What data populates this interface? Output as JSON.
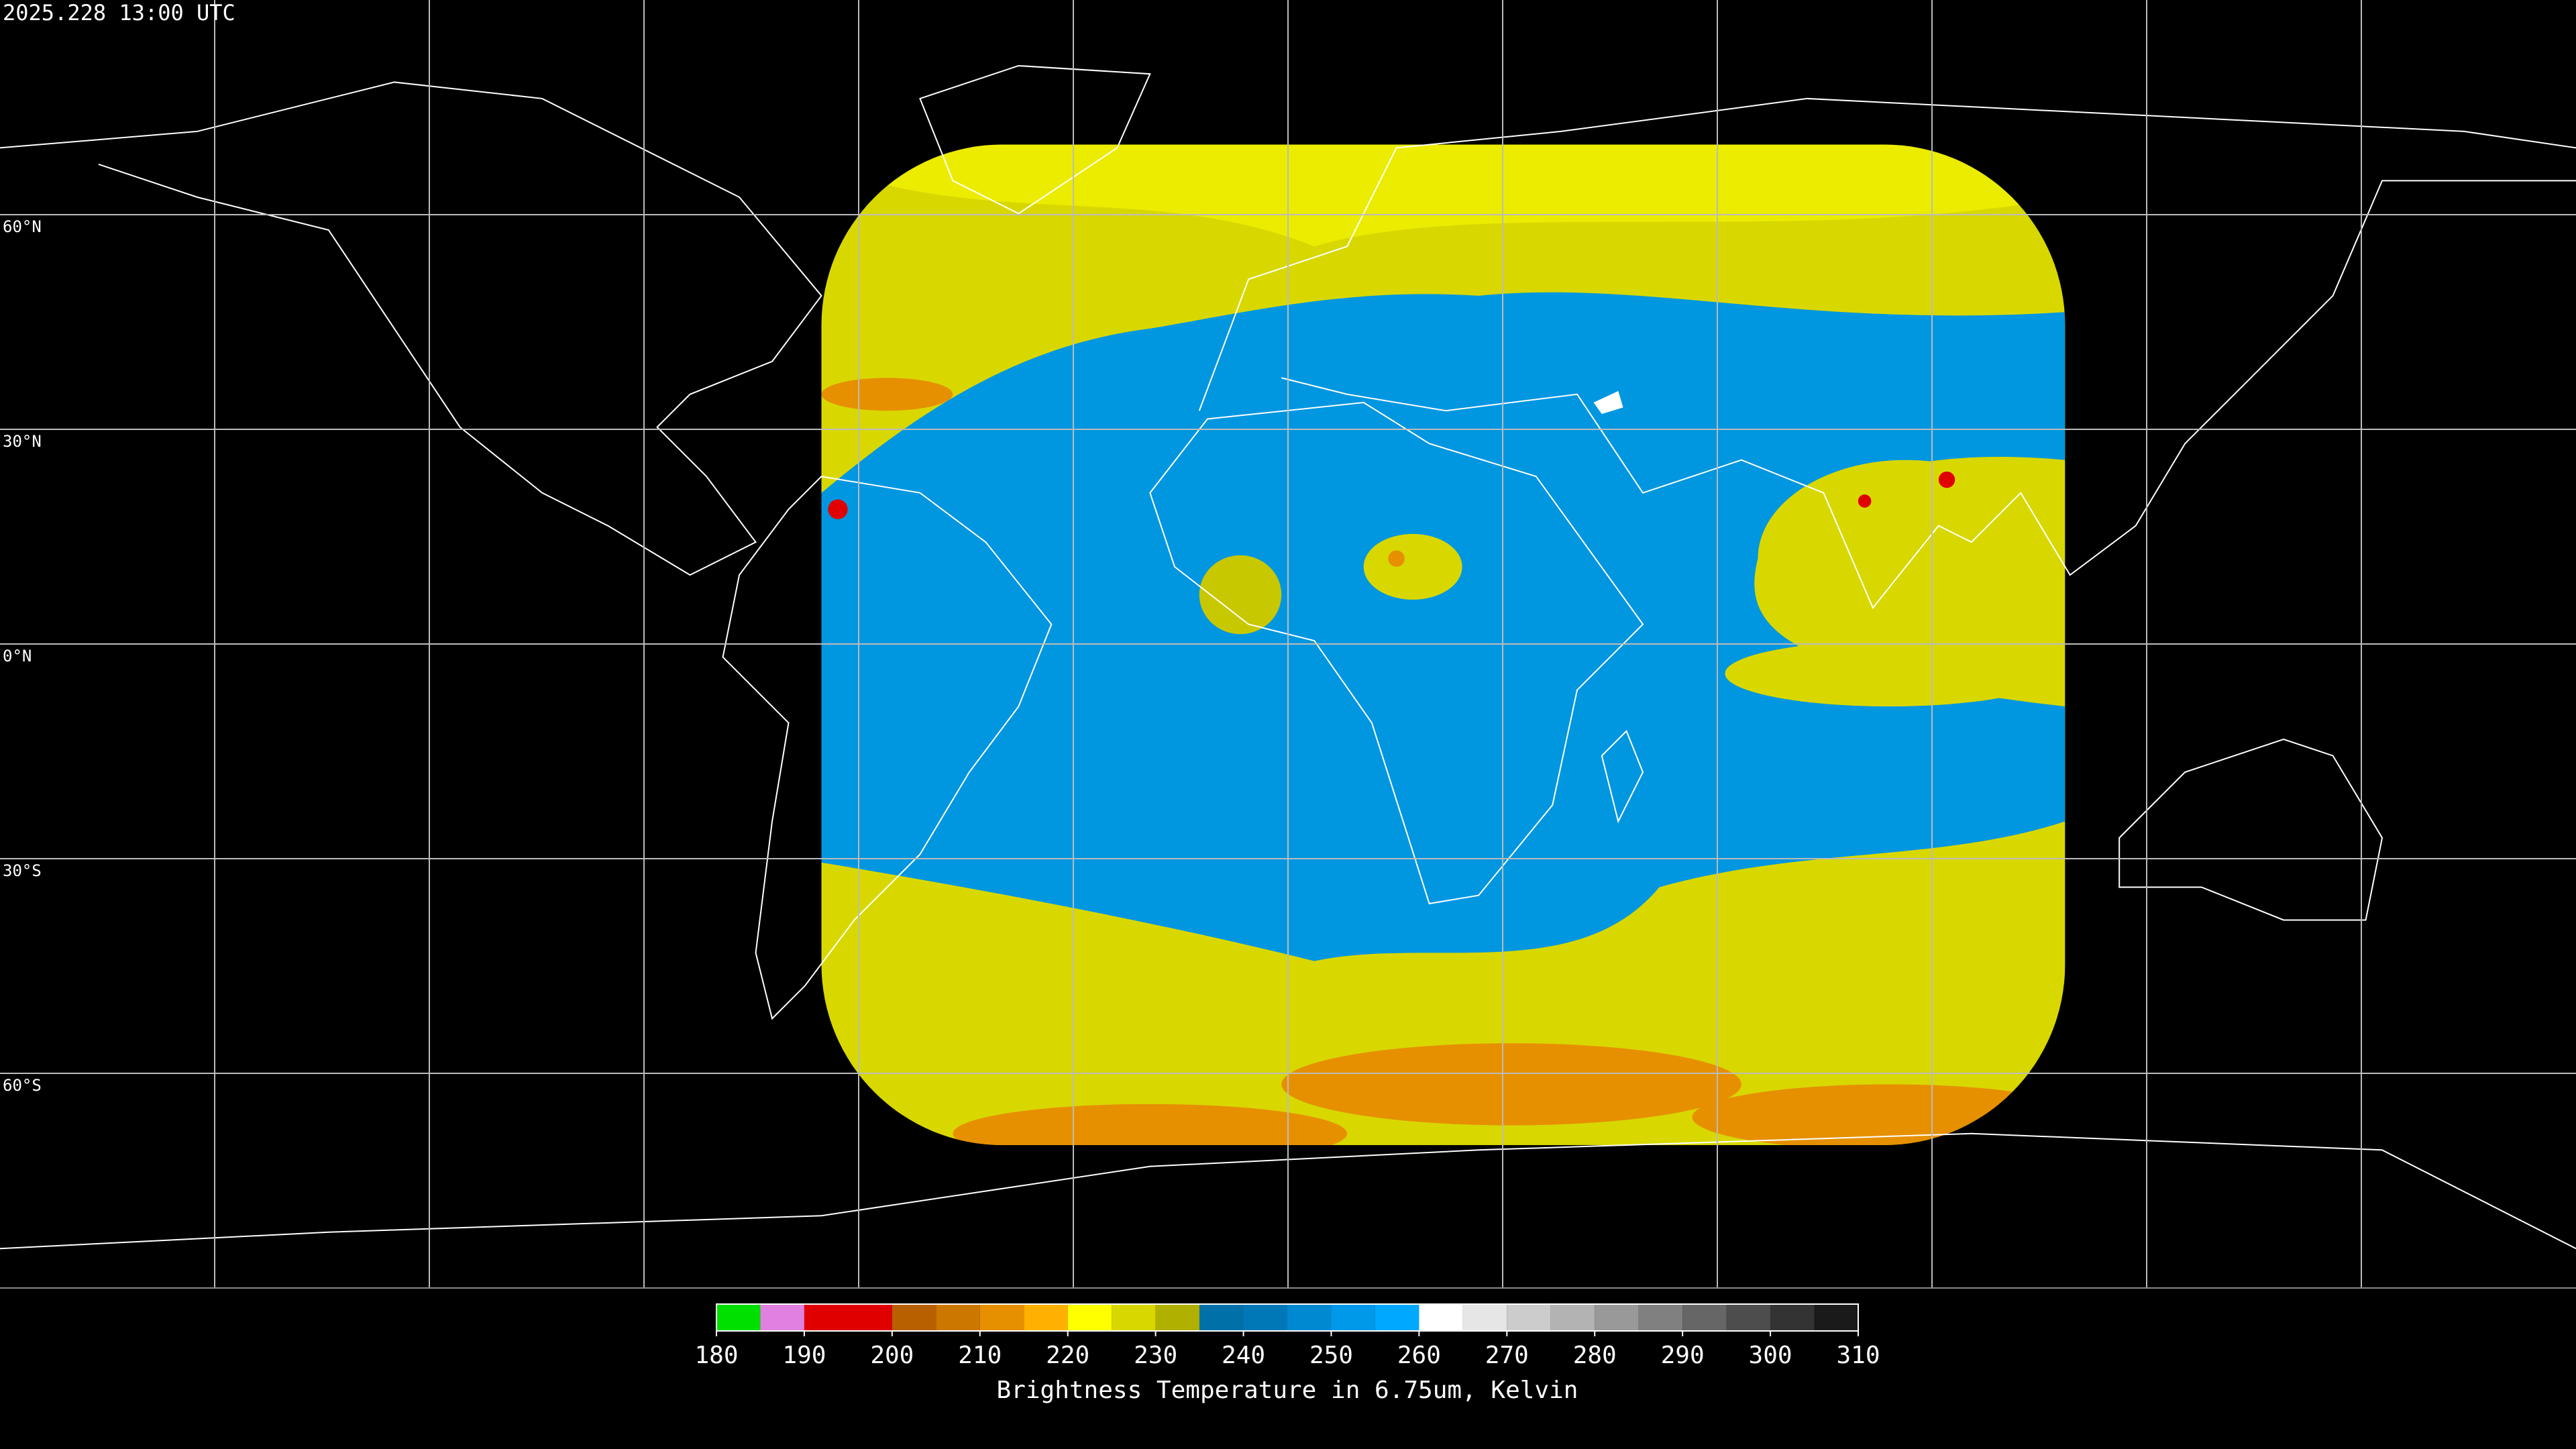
{
  "header": {
    "title": "2025.228 13:00 UTC"
  },
  "map": {
    "lat_labels": [
      "60°N",
      "30°N",
      "0°N",
      "30°S",
      "60°S"
    ]
  },
  "colorbar": {
    "label": "Brightness Temperature in 6.75um, Kelvin",
    "range": [
      180,
      310
    ],
    "ticks": [
      180,
      190,
      200,
      210,
      220,
      230,
      240,
      250,
      260,
      270,
      280,
      290,
      300,
      310
    ],
    "segments": [
      {
        "from": 180,
        "to": 185,
        "color": "#00e000"
      },
      {
        "from": 185,
        "to": 190,
        "color": "#e080e0"
      },
      {
        "from": 190,
        "to": 200,
        "color": "#e00000"
      },
      {
        "from": 200,
        "to": 205,
        "color": "#b86000"
      },
      {
        "from": 205,
        "to": 210,
        "color": "#cc7800"
      },
      {
        "from": 210,
        "to": 215,
        "color": "#e69000"
      },
      {
        "from": 215,
        "to": 220,
        "color": "#ffb000"
      },
      {
        "from": 220,
        "to": 225,
        "color": "#ffff00"
      },
      {
        "from": 225,
        "to": 230,
        "color": "#d8d800"
      },
      {
        "from": 230,
        "to": 235,
        "color": "#b0b000"
      },
      {
        "from": 235,
        "to": 240,
        "color": "#0070a8"
      },
      {
        "from": 240,
        "to": 245,
        "color": "#0078b8"
      },
      {
        "from": 245,
        "to": 250,
        "color": "#0088d0"
      },
      {
        "from": 250,
        "to": 255,
        "color": "#0098e8"
      },
      {
        "from": 255,
        "to": 260,
        "color": "#00a8ff"
      },
      {
        "from": 260,
        "to": 265,
        "color": "#ffffff"
      },
      {
        "from": 265,
        "to": 270,
        "color": "#e6e6e6"
      },
      {
        "from": 270,
        "to": 275,
        "color": "#cccccc"
      },
      {
        "from": 275,
        "to": 280,
        "color": "#b3b3b3"
      },
      {
        "from": 280,
        "to": 285,
        "color": "#999999"
      },
      {
        "from": 285,
        "to": 290,
        "color": "#808080"
      },
      {
        "from": 290,
        "to": 295,
        "color": "#666666"
      },
      {
        "from": 295,
        "to": 300,
        "color": "#4d4d4d"
      },
      {
        "from": 300,
        "to": 305,
        "color": "#333333"
      },
      {
        "from": 305,
        "to": 310,
        "color": "#1a1a1a"
      }
    ]
  }
}
